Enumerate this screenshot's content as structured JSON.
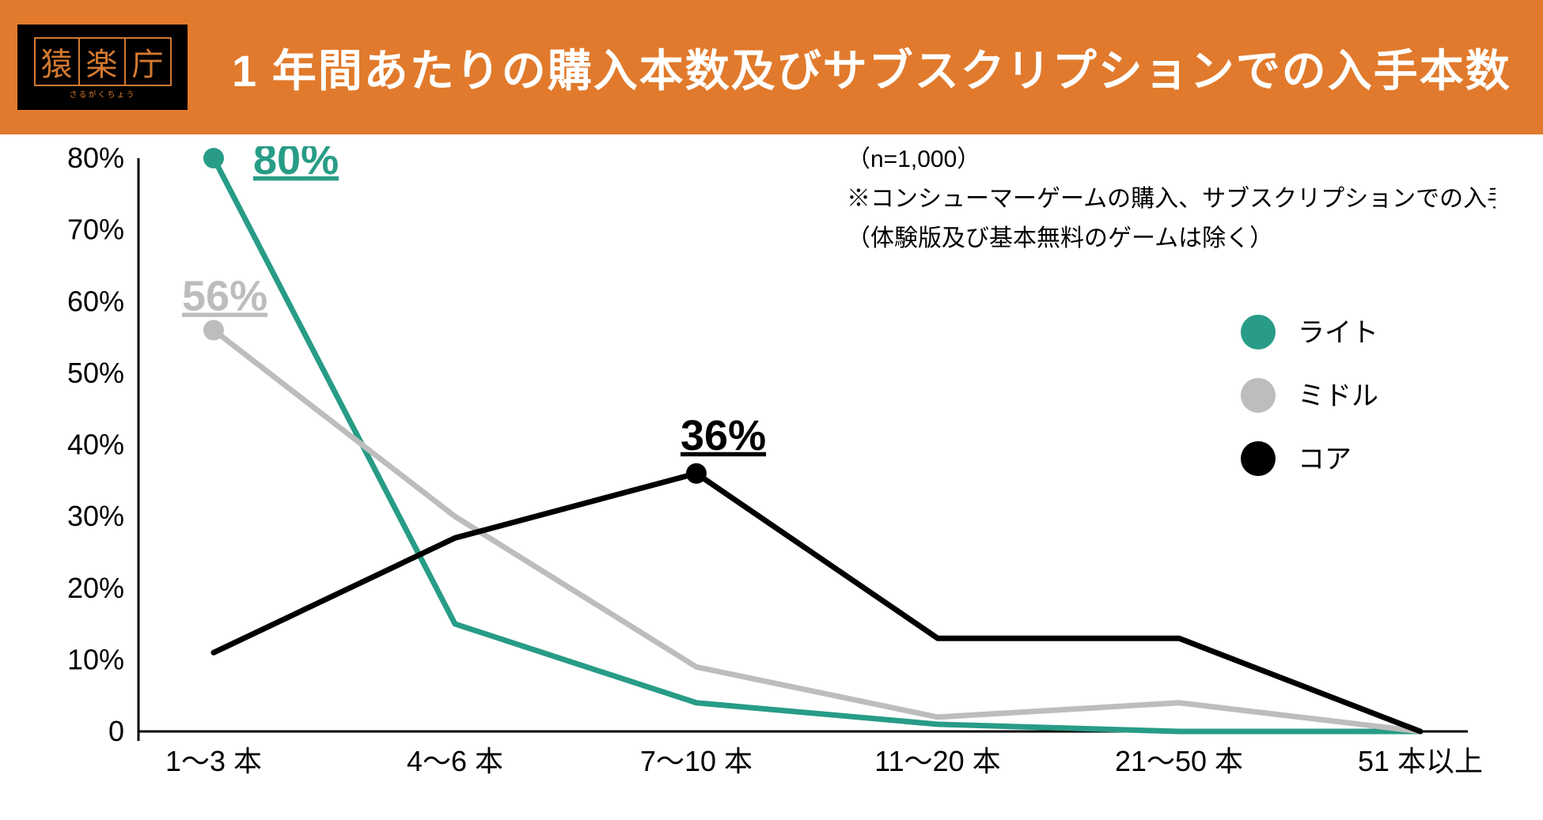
{
  "header": {
    "background_color": "#e17a2c",
    "title": "1 年間あたりの購入本数及びサブスクリプションでの入手本数",
    "title_color": "#ffffff",
    "title_fontsize": 56,
    "logo": {
      "chars": [
        "猿",
        "楽",
        "庁"
      ],
      "subtitle": "さるがくちょう",
      "border_color": "#d3792f",
      "text_color": "#d3792f",
      "background": "#000000"
    }
  },
  "chart": {
    "type": "line",
    "background_color": "#ffffff",
    "categories": [
      "1～3 本",
      "4～6 本",
      "7～10 本",
      "11～20 本",
      "21～50 本",
      "51 本以上"
    ],
    "x_label_fontsize": 36,
    "yaxis": {
      "min": 0,
      "max": 80,
      "ticks": [
        0,
        "10%",
        "20%",
        "30%",
        "40%",
        "50%",
        "60%",
        "70%",
        "80%"
      ],
      "tick_values": [
        0,
        10,
        20,
        30,
        40,
        50,
        60,
        70,
        80
      ],
      "label_fontsize": 36,
      "axis_color": "#000000",
      "axis_width": 3
    },
    "series": [
      {
        "name": "ライト",
        "color": "#289c86",
        "values": [
          80,
          15,
          4,
          1,
          0,
          0
        ],
        "line_width": 7,
        "highlight": {
          "index": 0,
          "label": "80%",
          "underline": true,
          "marker_radius": 13
        }
      },
      {
        "name": "ミドル",
        "color": "#bdbdbd",
        "values": [
          56,
          30,
          9,
          2,
          4,
          0
        ],
        "line_width": 7,
        "highlight": {
          "index": 0,
          "label": "56%",
          "underline": true,
          "marker_radius": 13
        }
      },
      {
        "name": "コア",
        "color": "#000000",
        "values": [
          11,
          27,
          36,
          13,
          13,
          0
        ],
        "line_width": 7,
        "highlight": {
          "index": 2,
          "label": "36%",
          "underline": true,
          "marker_radius": 13
        }
      }
    ],
    "notes": [
      "（n=1,000）",
      "※コンシューマーゲームの購入、サブスクリプションでの入手",
      "（体験版及び基本無料のゲームは除く）"
    ],
    "note_fontsize": 30,
    "legend": {
      "items": [
        "ライト",
        "ミドル",
        "コア"
      ],
      "marker_radius": 22,
      "label_fontsize": 34
    }
  }
}
